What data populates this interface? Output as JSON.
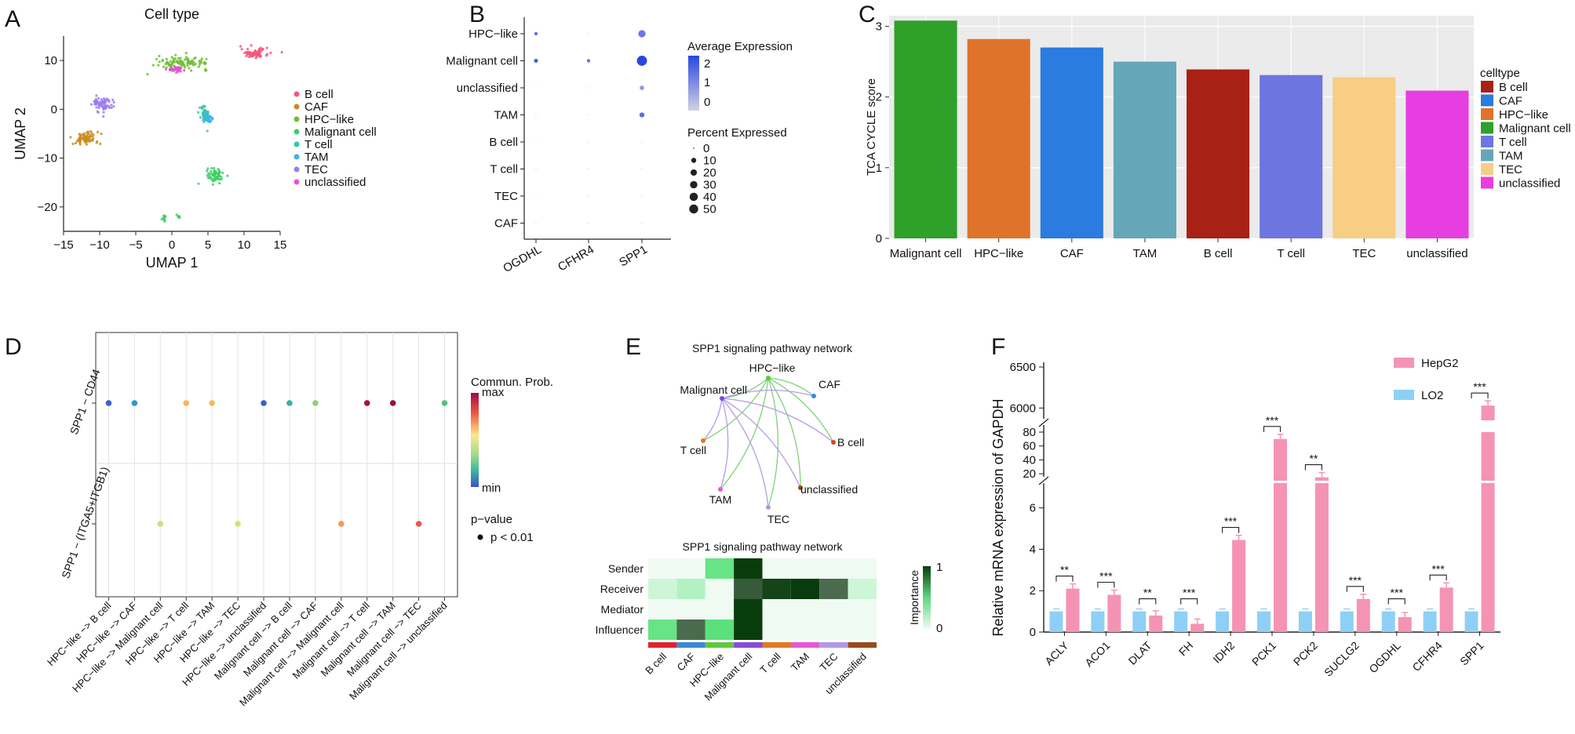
{
  "panel_labels": [
    "A",
    "B",
    "C",
    "D",
    "E",
    "F"
  ],
  "chart_data": [
    {
      "panel": "A",
      "type": "scatter",
      "title": "Cell type",
      "xlabel": "UMAP 1",
      "ylabel": "UMAP 2",
      "xlim": [
        -15,
        15
      ],
      "ylim": [
        -25,
        15
      ],
      "xticks": [
        "−15",
        "−10",
        "−5",
        "0",
        "5",
        "10",
        "15"
      ],
      "yticks": [
        "10",
        "0",
        "−10",
        "−20"
      ],
      "legend": [
        {
          "name": "B cell",
          "color": "#f0587c"
        },
        {
          "name": "CAF",
          "color": "#c98d1c"
        },
        {
          "name": "HPC−like",
          "color": "#6fbe36"
        },
        {
          "name": "Malignant cell",
          "color": "#3fce69"
        },
        {
          "name": "T cell",
          "color": "#32c7a4"
        },
        {
          "name": "TAM",
          "color": "#40b3e5"
        },
        {
          "name": "TEC",
          "color": "#9a7cf0"
        },
        {
          "name": "unclassified",
          "color": "#e354d3"
        }
      ],
      "clusters": [
        {
          "label": "B cell",
          "color": "#f0587c",
          "cx": 11.5,
          "cy": 11.5,
          "sx": 1.6,
          "sy": 0.8,
          "n": 70
        },
        {
          "label": "CAF",
          "color": "#c98d1c",
          "cx": -12,
          "cy": -6,
          "sx": 1.5,
          "sy": 1.2,
          "n": 80
        },
        {
          "label": "HPC−like",
          "color": "#6fbe36",
          "cx": 1.5,
          "cy": 9.5,
          "sx": 3.0,
          "sy": 1.1,
          "n": 110
        },
        {
          "label": "Malignant cell",
          "color": "#3fce69",
          "cx": 6,
          "cy": -13.5,
          "sx": 0.9,
          "sy": 1.2,
          "n": 70
        },
        {
          "label": "Malignant cell",
          "color": "#3fce69",
          "cx": -1,
          "cy": -22.5,
          "sx": 0.3,
          "sy": 0.6,
          "n": 12
        },
        {
          "label": "Malignant cell",
          "color": "#3fce69",
          "cx": 1,
          "cy": -22,
          "sx": 0.3,
          "sy": 0.3,
          "n": 6
        },
        {
          "label": "T cell",
          "color": "#32c7a4",
          "cx": 4.5,
          "cy": -1,
          "sx": 0.6,
          "sy": 1.4,
          "n": 40
        },
        {
          "label": "TAM",
          "color": "#40b3e5",
          "cx": 5,
          "cy": -2,
          "sx": 0.6,
          "sy": 1.0,
          "n": 30
        },
        {
          "label": "TEC",
          "color": "#9a7cf0",
          "cx": -9.5,
          "cy": 1,
          "sx": 1.2,
          "sy": 1.3,
          "n": 70
        },
        {
          "label": "unclassified",
          "color": "#e354d3",
          "cx": 0.5,
          "cy": 8.2,
          "sx": 0.9,
          "sy": 0.5,
          "n": 30
        }
      ]
    },
    {
      "panel": "B",
      "type": "scatter",
      "title": "",
      "genes": [
        "OGDHL",
        "CFHR4",
        "SPP1"
      ],
      "celltypes": [
        "HPC−like",
        "Malignant cell",
        "unclassified",
        "TAM",
        "B cell",
        "T cell",
        "TEC",
        "CAF"
      ],
      "pct": [
        [
          1,
          0,
          12
        ],
        [
          2,
          1,
          28
        ],
        [
          0,
          0,
          3
        ],
        [
          0,
          0,
          4
        ],
        [
          0,
          0,
          0
        ],
        [
          0,
          0,
          0
        ],
        [
          0,
          0,
          0
        ],
        [
          0,
          0,
          0
        ]
      ],
      "avg": [
        [
          1.5,
          0,
          1.4
        ],
        [
          1.8,
          1.5,
          2.3
        ],
        [
          0,
          0,
          0.8
        ],
        [
          0,
          0,
          1.6
        ],
        [
          0,
          0,
          0
        ],
        [
          0,
          0,
          0
        ],
        [
          0,
          0,
          0
        ],
        [
          0,
          0,
          0
        ]
      ],
      "legend_avg_title": "Average Expression",
      "legend_avg_ticks": [
        "2",
        "1",
        "0"
      ],
      "legend_pct_title": "Percent Expressed",
      "legend_pct_values": [
        "0",
        "10",
        "20",
        "30",
        "40",
        "50"
      ]
    },
    {
      "panel": "C",
      "type": "bar",
      "title": "",
      "xlabel": "",
      "ylabel": "TCA CYCLE score",
      "ylim": [
        0,
        3.15
      ],
      "yticks": [
        "0",
        "1",
        "2",
        "3"
      ],
      "categories": [
        "Malignant cell",
        "HPC−like",
        "CAF",
        "TAM",
        "B cell",
        "T cell",
        "TEC",
        "unclassified"
      ],
      "values": [
        3.08,
        2.82,
        2.7,
        2.5,
        2.39,
        2.31,
        2.28,
        2.09
      ],
      "colors": [
        "#2fa02a",
        "#e0732a",
        "#2b7be0",
        "#65a7b8",
        "#a92014",
        "#6d75e0",
        "#f8ce84",
        "#e63ee0"
      ],
      "legend_title": "celltype",
      "legend": [
        {
          "name": "B cell",
          "color": "#a92014"
        },
        {
          "name": "CAF",
          "color": "#2b7be0"
        },
        {
          "name": "HPC−like",
          "color": "#e0732a"
        },
        {
          "name": "Malignant cell",
          "color": "#2fa02a"
        },
        {
          "name": "T cell",
          "color": "#6d75e0"
        },
        {
          "name": "TAM",
          "color": "#65a7b8"
        },
        {
          "name": "TEC",
          "color": "#f8ce84"
        },
        {
          "name": "unclassified",
          "color": "#e63ee0"
        }
      ]
    },
    {
      "panel": "D",
      "type": "scatter",
      "title": "",
      "rows": [
        "SPP1 − CD44",
        "SPP1 − (ITGA5+ITGB1)"
      ],
      "columns": [
        "HPC−like −> B cell",
        "HPC−like −> CAF",
        "HPC−like −> Malignant cell",
        "HPC−like −> T cell",
        "HPC−like −> TAM",
        "HPC−like −> TEC",
        "HPC−like −> unclassified",
        "Malignant cell −> B cell",
        "Malignant cell −> CAF",
        "Malignant cell −> Malignant cell",
        "Malignant cell −> T cell",
        "Malignant cell −> TAM",
        "Malignant cell −> TEC",
        "Malignant cell −> unclassified"
      ],
      "points": [
        {
          "row": 0,
          "col": 0,
          "color": "#3a5fd0"
        },
        {
          "row": 0,
          "col": 1,
          "color": "#2f98c8"
        },
        {
          "row": 0,
          "col": 3,
          "color": "#f5b657"
        },
        {
          "row": 0,
          "col": 4,
          "color": "#f3bb5d"
        },
        {
          "row": 0,
          "col": 6,
          "color": "#3a5fd0"
        },
        {
          "row": 0,
          "col": 7,
          "color": "#37b39b"
        },
        {
          "row": 0,
          "col": 8,
          "color": "#8fd26d"
        },
        {
          "row": 0,
          "col": 10,
          "color": "#a2124a"
        },
        {
          "row": 0,
          "col": 11,
          "color": "#9c0d45"
        },
        {
          "row": 0,
          "col": 13,
          "color": "#52c07a"
        },
        {
          "row": 1,
          "col": 2,
          "color": "#c9e07a"
        },
        {
          "row": 1,
          "col": 5,
          "color": "#d0e277"
        },
        {
          "row": 1,
          "col": 9,
          "color": "#f29a5c"
        },
        {
          "row": 1,
          "col": 12,
          "color": "#e9574a"
        }
      ],
      "legend_title": "Commun. Prob.",
      "legend_max": "max",
      "legend_min": "min",
      "pvalue_title": "p−value",
      "pvalue_label": "p < 0.01"
    },
    {
      "panel": "E",
      "type": "heatmap",
      "network_title": "SPP1 signaling pathway network",
      "network_nodes": [
        {
          "name": "HPC−like",
          "color": "#5ec93c"
        },
        {
          "name": "CAF",
          "color": "#3b88d8"
        },
        {
          "name": "Malignant cell",
          "color": "#7a4ad8"
        },
        {
          "name": "B cell",
          "color": "#e0402a"
        },
        {
          "name": "T cell",
          "color": "#e07a24"
        },
        {
          "name": "unclassified",
          "color": "#8b4a1a"
        },
        {
          "name": "TAM",
          "color": "#e458d6"
        },
        {
          "name": "TEC",
          "color": "#b09ae6"
        }
      ],
      "network_edges": [
        {
          "from": "HPC−like",
          "to": "CAF",
          "color": "#7fd27a"
        },
        {
          "from": "HPC−like",
          "to": "B cell",
          "color": "#7fd27a"
        },
        {
          "from": "HPC−like",
          "to": "T cell",
          "color": "#7fd27a"
        },
        {
          "from": "HPC−like",
          "to": "TAM",
          "color": "#7fd27a"
        },
        {
          "from": "HPC−like",
          "to": "TEC",
          "color": "#7fd27a"
        },
        {
          "from": "HPC−like",
          "to": "unclassified",
          "color": "#7fd27a"
        },
        {
          "from": "HPC−like",
          "to": "Malignant cell",
          "color": "#7fd27a"
        },
        {
          "from": "Malignant cell",
          "to": "B cell",
          "color": "#b79ae8"
        },
        {
          "from": "Malignant cell",
          "to": "T cell",
          "color": "#b79ae8"
        },
        {
          "from": "Malignant cell",
          "to": "TAM",
          "color": "#b79ae8"
        },
        {
          "from": "Malignant cell",
          "to": "TEC",
          "color": "#b79ae8"
        },
        {
          "from": "Malignant cell",
          "to": "unclassified",
          "color": "#b79ae8"
        },
        {
          "from": "Malignant cell",
          "to": "CAF",
          "color": "#b79ae8"
        }
      ],
      "heatmap_title": "SPP1 signaling pathway network",
      "roles": [
        "Sender",
        "Receiver",
        "Mediator",
        "Influencer"
      ],
      "celltypes": [
        "B cell",
        "CAF",
        "HPC−like",
        "Malignant cell",
        "T cell",
        "TAM",
        "TEC",
        "unclassified"
      ],
      "celltype_colors": [
        "#e0222a",
        "#3b88d8",
        "#5ec93c",
        "#8a4ad8",
        "#e07a24",
        "#e458d6",
        "#b09ae6",
        "#9a4a1a"
      ],
      "values": [
        [
          0,
          0,
          0.5,
          1,
          0,
          0,
          0,
          0
        ],
        [
          0.1,
          0.2,
          0,
          0.8,
          0.95,
          1,
          0.7,
          0.1
        ],
        [
          0,
          0,
          0,
          1,
          0,
          0,
          0,
          0
        ],
        [
          0.5,
          0.7,
          0.55,
          1,
          0,
          0,
          0,
          0
        ]
      ],
      "legend_title": "Importance",
      "legend_ticks": [
        "1",
        "0"
      ]
    },
    {
      "panel": "F",
      "type": "bar",
      "title": "",
      "xlabel": "",
      "ylabel": "Relative mRNA expression of GAPDH",
      "categories": [
        "ACLY",
        "ACO1",
        "DLAT",
        "FH",
        "IDH2",
        "PCK1",
        "PCK2",
        "SUCLG2",
        "OGDHL",
        "CFHR4",
        "SPP1"
      ],
      "series": [
        {
          "name": "LO2",
          "color": "#8ed0f5",
          "values": [
            1,
            1,
            1,
            1,
            1,
            1,
            1,
            1,
            1,
            1,
            1
          ]
        },
        {
          "name": "HepG2",
          "color": "#f593b5",
          "values": [
            2.1,
            1.8,
            0.8,
            0.4,
            4.45,
            70,
            15,
            1.6,
            0.72,
            2.15,
            6030
          ]
        }
      ],
      "significance": [
        "**",
        "***",
        "**",
        "***",
        "***",
        "***",
        "**",
        "***",
        "***",
        "***",
        "***"
      ],
      "yticks_low": [
        "0",
        "2",
        "4",
        "6"
      ],
      "yticks_mid": [
        "20",
        "40",
        "60",
        "80"
      ],
      "yticks_high": [
        "6000",
        "6500"
      ]
    }
  ]
}
